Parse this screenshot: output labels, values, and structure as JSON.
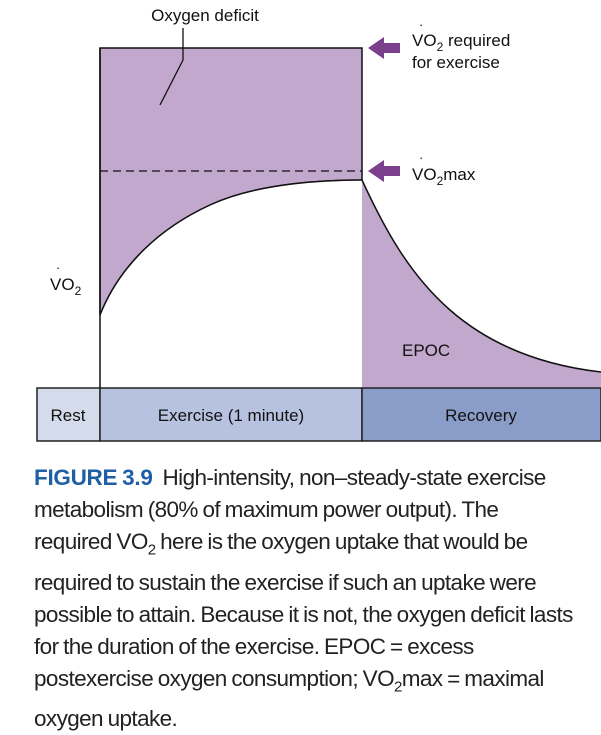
{
  "diagram": {
    "oxygen_deficit_label": "Oxygen deficit",
    "vo2_required_line1_prefix": "VO",
    "vo2_required_line1_sub": "2",
    "vo2_required_line1_suffix": " required",
    "vo2_required_line2": "for exercise",
    "vo2max_prefix": "VO",
    "vo2max_sub": "2",
    "vo2max_suffix": "max",
    "y_axis_prefix": "VO",
    "y_axis_sub": "2",
    "epoc_label": "EPOC",
    "phases": [
      {
        "label": "Rest"
      },
      {
        "label": "Exercise (1 minute)"
      },
      {
        "label": "Recovery"
      }
    ],
    "colors": {
      "deficit_fill": "#c2a8cc",
      "arrow": "#7b3f8e",
      "rest_band": "#d4dcec",
      "exercise_band": "#b7c2e0",
      "recovery_band": "#8a9cc8",
      "figure_label": "#1f5fa6"
    }
  },
  "caption": {
    "figure_label": "FIGURE 3.9",
    "text_part1": "High-intensity, non–steady-state exercise metabolism (80% of maximum power output). The required ",
    "text_vo": "VO",
    "text_sub1": "2",
    "text_part2": " here is the oxygen uptake that would be required to sustain the exercise if such an uptake were possible to attain. Because it is not, the oxygen deficit lasts for the duration of the exercise. EPOC = excess postexercise oxygen consumption; ",
    "text_vo2": "VO",
    "text_sub2": "2",
    "text_part3": "max = maximal oxygen uptake."
  }
}
